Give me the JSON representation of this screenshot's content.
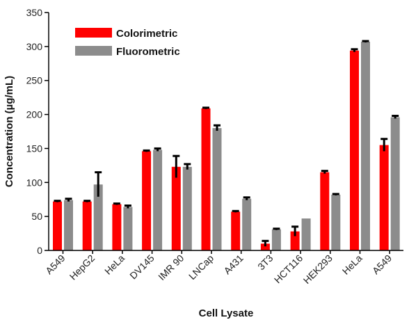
{
  "chart_data": {
    "type": "bar",
    "title": "",
    "xlabel": "Cell Lysate",
    "ylabel": "Concentration (µg/mL)",
    "ylim": [
      0,
      350
    ],
    "yticks": [
      0,
      50,
      100,
      150,
      200,
      250,
      300,
      350
    ],
    "grid": false,
    "legend_position": "top-left",
    "categories": [
      "A549",
      "HepG2",
      "HeLa",
      "DV145",
      "IMR 90",
      "LNCap",
      "A431",
      "3T3",
      "HCT116",
      "HEK293",
      "HeLa",
      "A549"
    ],
    "series": [
      {
        "name": "Colorimetric",
        "color": "#ff0000",
        "values": [
          72,
          72,
          68,
          146,
          123,
          209,
          57,
          10,
          28,
          115,
          294,
          155
        ],
        "error": [
          1,
          1,
          1,
          1,
          16,
          1,
          1,
          4,
          7,
          2,
          2,
          9
        ]
      },
      {
        "name": "Fluorometric",
        "color": "#8c8c8c",
        "values": [
          74,
          97,
          64,
          148,
          123,
          180,
          76,
          31,
          47,
          82,
          307,
          196
        ],
        "error": [
          2,
          18,
          2,
          2,
          4,
          4,
          2,
          1,
          0,
          1,
          1,
          2
        ]
      }
    ]
  }
}
